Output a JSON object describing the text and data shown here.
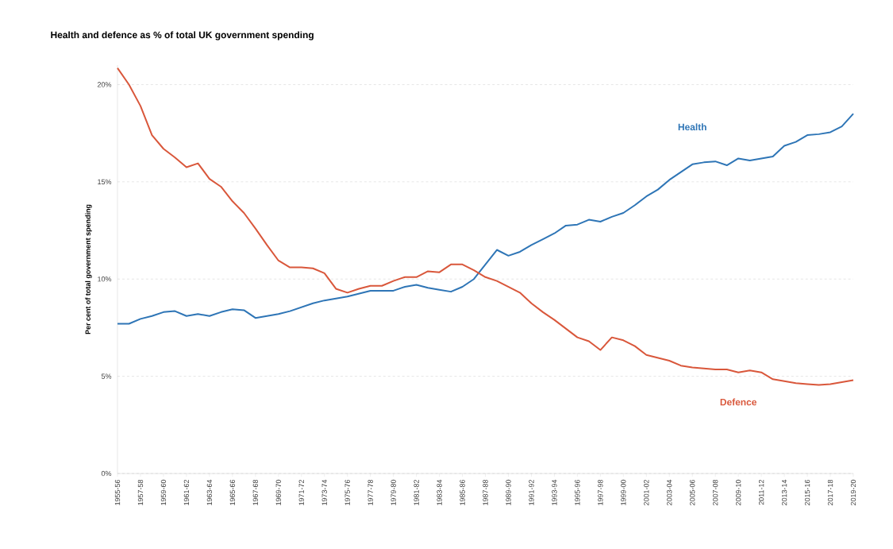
{
  "chart_data": {
    "type": "line",
    "title": "Health and defence as % of total UK government spending",
    "ylabel": "Per cent of total government spending",
    "categories": [
      "1955-56",
      null,
      "1957-58",
      null,
      "1959-60",
      null,
      "1961-62",
      null,
      "1963-64",
      null,
      "1965-66",
      null,
      "1967-68",
      null,
      "1969-70",
      null,
      "1971-72",
      null,
      "1973-74",
      null,
      "1975-76",
      null,
      "1977-78",
      null,
      "1979-80",
      null,
      "1981-82",
      null,
      "1983-84",
      null,
      "1985-86",
      null,
      "1987-88",
      null,
      "1989-90",
      null,
      "1991-92",
      null,
      "1993-94",
      null,
      "1995-96",
      null,
      "1997-98",
      null,
      "1999-00",
      null,
      "2001-02",
      null,
      "2003-04",
      null,
      "2005-06",
      null,
      "2007-08",
      null,
      "2009-10",
      null,
      "2011-12",
      null,
      "2013-14",
      null,
      "2015-16",
      null,
      "2017-18",
      null,
      "2019-20"
    ],
    "series": [
      {
        "name": "Health",
        "color": "#2e75b6",
        "values": [
          7.7,
          7.7,
          7.95,
          8.1,
          8.3,
          8.35,
          8.1,
          8.2,
          8.1,
          8.3,
          8.45,
          8.4,
          8.0,
          8.1,
          8.2,
          8.35,
          8.55,
          8.75,
          8.9,
          9.0,
          9.1,
          9.25,
          9.4,
          9.4,
          9.4,
          9.6,
          9.7,
          9.55,
          9.45,
          9.35,
          9.6,
          10.0,
          10.75,
          11.5,
          11.2,
          11.4,
          11.75,
          12.05,
          12.35,
          12.75,
          12.8,
          13.05,
          12.95,
          13.2,
          13.4,
          13.8,
          14.25,
          14.6,
          15.1,
          15.5,
          15.9,
          16.0,
          16.05,
          15.85,
          16.2,
          16.1,
          16.2,
          16.3,
          16.85,
          17.05,
          17.4,
          17.45,
          17.55,
          17.85,
          18.5
        ]
      },
      {
        "name": "Defence",
        "color": "#d9573b",
        "values": [
          20.85,
          20.0,
          18.9,
          17.4,
          16.7,
          16.25,
          15.75,
          15.95,
          15.15,
          14.75,
          14.0,
          13.4,
          12.6,
          11.75,
          10.95,
          10.6,
          10.6,
          10.55,
          10.3,
          9.5,
          9.3,
          9.5,
          9.65,
          9.65,
          9.9,
          10.1,
          10.1,
          10.4,
          10.35,
          10.75,
          10.75,
          10.45,
          10.1,
          9.9,
          9.6,
          9.3,
          8.75,
          8.3,
          7.9,
          7.45,
          7.0,
          6.8,
          6.35,
          7.0,
          6.85,
          6.55,
          6.1,
          5.95,
          5.8,
          5.55,
          5.45,
          5.4,
          5.35,
          5.35,
          5.2,
          5.3,
          5.2,
          4.85,
          4.75,
          4.65,
          4.6,
          4.55,
          4.6,
          4.7,
          4.8
        ]
      }
    ],
    "ylim": [
      0,
      21
    ],
    "yticks": [
      {
        "value": 0,
        "label": "0%"
      },
      {
        "value": 5,
        "label": "5%"
      },
      {
        "value": 10,
        "label": "10%"
      },
      {
        "value": 15,
        "label": "15%"
      },
      {
        "value": 20,
        "label": "20%"
      }
    ],
    "grid": "y",
    "marker": "none",
    "line_style": "solid"
  }
}
